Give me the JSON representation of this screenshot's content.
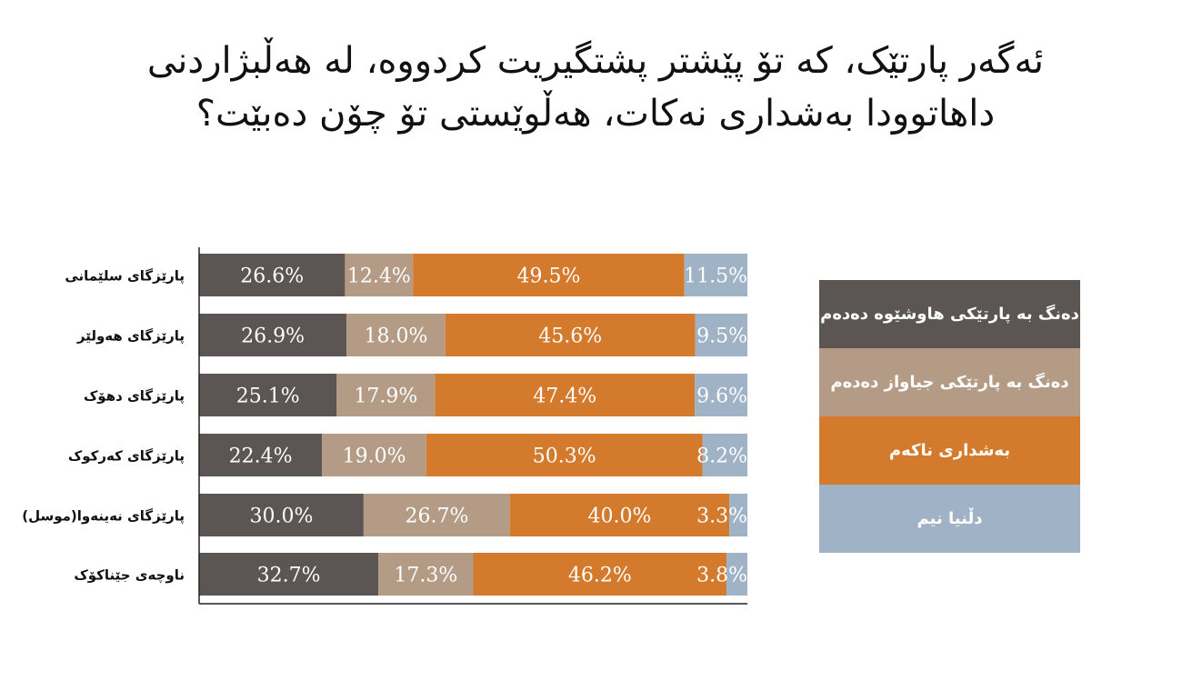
{
  "title": {
    "line1": "ئەگەر پارتێک، کە تۆ پێشتر پشتگیریت کردووە، لە هەڵبژاردنی",
    "line2": "داهاتوودا بەشداری نەکات، هەڵوێستی تۆ چۆن دەبێت؟"
  },
  "chart_data": {
    "type": "bar",
    "orientation": "horizontal",
    "stacked": true,
    "percent_axis": true,
    "categories": [
      "پارێزگای  سلێمانی",
      "پارێزگای هەولێر",
      "پارێزگای دهۆک",
      "پارێزگای کەرکوک",
      "پارێزگای نەینەوا(موسل)",
      "ناوچەی جێناکۆک"
    ],
    "series": [
      {
        "name": "دەنگ بە پارتێکی هاوشێوە دەدەم",
        "color": "#5b5553",
        "values": [
          26.6,
          26.9,
          25.1,
          22.4,
          30.0,
          32.7
        ],
        "labels": [
          "26.6%",
          "26.9%",
          "25.1%",
          "22.4%",
          "30.0%",
          "32.7%"
        ]
      },
      {
        "name": "دەنگ بە پارتێکی جیاواز دەدەم",
        "color": "#b49b86",
        "values": [
          12.4,
          18.0,
          17.9,
          19.0,
          26.7,
          17.3
        ],
        "labels": [
          "12.4%",
          "18.0%",
          "17.9%",
          "19.0%",
          "26.7%",
          "17.3%"
        ]
      },
      {
        "name": "بەشداری ناکەم",
        "color": "#d47a2d",
        "values": [
          49.5,
          45.6,
          47.4,
          50.3,
          40.0,
          46.2
        ],
        "labels": [
          "49.5%",
          "45.6%",
          "47.4%",
          "50.3%",
          "40.0%",
          "46.2%"
        ]
      },
      {
        "name": "دڵنیا نیم",
        "color": "#9fb2c6",
        "values": [
          11.5,
          9.5,
          9.6,
          8.2,
          3.3,
          3.8
        ],
        "labels": [
          "11.5%",
          "9.5%",
          "9.6%",
          "8.2%",
          "3.3%",
          "3.8%"
        ]
      }
    ],
    "legend_position": "right",
    "grid": false
  }
}
